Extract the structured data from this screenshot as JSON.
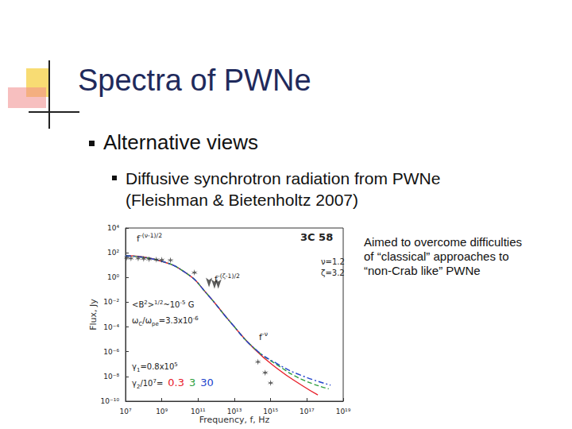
{
  "title": "Spectra of PWNe",
  "bullet": "Alternative views",
  "sub_bullet": [
    "Diffusive synchrotron radiation from PWNe",
    "(Fleishman & Bietenholtz 2007)"
  ],
  "note": "Aimed to overcome difficulties of “classical” approaches to “non-Crab like” PWNe",
  "chart_data": {
    "type": "line",
    "log": true,
    "grid": false,
    "xlabel": "Frequency, f, Hz",
    "ylabel": "Flux, Jy",
    "xlim": [
      10000000.0,
      1e+19
    ],
    "xticks": [
      {
        "value": 10000000.0,
        "label": "10⁷"
      },
      {
        "value": 1000000000.0,
        "label": "10⁹"
      },
      {
        "value": 100000000000.0,
        "label": "10¹¹"
      },
      {
        "value": 10000000000000.0,
        "label": "10¹³"
      },
      {
        "value": 1000000000000000.0,
        "label": "10¹⁵"
      },
      {
        "value": 1e+17,
        "label": "10¹⁷"
      },
      {
        "value": 1e+19,
        "label": "10¹⁹"
      }
    ],
    "ylim": [
      1e-10,
      10000.0
    ],
    "yticks": [
      {
        "value": 1e-10,
        "label": "10⁻¹⁰"
      },
      {
        "value": 1e-08,
        "label": "10⁻⁸"
      },
      {
        "value": 1e-06,
        "label": "10⁻⁶"
      },
      {
        "value": 0.0001,
        "label": "10⁻⁴"
      },
      {
        "value": 0.01,
        "label": "10⁻²"
      },
      {
        "value": 1,
        "label": "10⁰"
      },
      {
        "value": 100,
        "label": "10²"
      },
      {
        "value": 10000,
        "label": "10⁴"
      }
    ],
    "annotations": [
      [
        {
          "text": "3C 58"
        }
      ],
      [
        {
          "text": "ν=1.2"
        }
      ],
      [
        {
          "text": "ζ=3.2"
        }
      ],
      [
        {
          "text": "f"
        },
        {
          "sup": "-(ν-1)/2"
        }
      ],
      [
        {
          "text": "f"
        },
        {
          "sup": "-(ζ-1)/2"
        }
      ],
      [
        {
          "text": "<B"
        },
        {
          "sup": "2"
        },
        {
          "text": ">"
        },
        {
          "sup": "1/2"
        },
        {
          "text": "~10"
        },
        {
          "sup": "-5"
        },
        {
          "text": " G"
        }
      ],
      [
        {
          "text": "ω"
        },
        {
          "sub": "C"
        },
        {
          "text": "/ω"
        },
        {
          "sub": "pe"
        },
        {
          "text": "=3.3x10"
        },
        {
          "sup": "-6"
        }
      ],
      [
        {
          "text": "f"
        },
        {
          "sup": "-ν"
        }
      ],
      [
        {
          "text": "γ"
        },
        {
          "sub": "1"
        },
        {
          "text": "=0.8x10"
        },
        {
          "sup": "5"
        }
      ],
      [
        {
          "text": "γ"
        },
        {
          "sub": "2"
        },
        {
          "text": "/10"
        },
        {
          "sup": "7"
        },
        {
          "text": "="
        }
      ]
    ],
    "series": [
      {
        "type": "scatter",
        "marker": "star",
        "color": "#333333",
        "x": [
          12000000.0,
          20000000.0,
          50000000.0,
          100000000.0,
          200000000.0,
          500000000.0,
          1000000000.0,
          3000000000.0,
          63000000000.0,
          200000000000000.0,
          500000000000000.0,
          1000000000000000.0
        ],
        "values": [
          40,
          35,
          35,
          33,
          30,
          28,
          27,
          25,
          2.5,
          1.5e-07,
          2e-08,
          3e-09
        ]
      },
      {
        "type": "scatter",
        "marker": "arrow",
        "color": "#333333",
        "x": [
          400000000000.0,
          800000000000.0,
          1300000000000.0
        ],
        "values": [
          0.4,
          0.3,
          0.3
        ]
      },
      {
        "name": "0.3",
        "color": "#e8202a",
        "line_style": "solid",
        "x": [
          10000000.0,
          600000000.0,
          25000000000.0,
          300000000000.0,
          6000000000000.0,
          130000000000000.0,
          2500000000000000.0,
          5e+16,
          4e+17
        ],
        "values": [
          56,
          25,
          2,
          0.05,
          0.00025,
          1.6e-06,
          4e-08,
          2e-09,
          3.2e-10
        ]
      },
      {
        "name": "3",
        "color": "#2e9e3e",
        "line_style": "dashed",
        "x": [
          10000000.0,
          600000000.0,
          25000000000.0,
          300000000000.0,
          6000000000000.0,
          130000000000000.0,
          2500000000000000.0,
          5e+16,
          1.6e+18
        ],
        "values": [
          56,
          25,
          2,
          0.05,
          0.00025,
          1.8e-06,
          8e-08,
          6e-09,
          1e-09
        ]
      },
      {
        "name": "30",
        "color": "#2244cc",
        "line_style": "dashdot",
        "x": [
          10000000.0,
          600000000.0,
          25000000000.0,
          300000000000.0,
          6000000000000.0,
          130000000000000.0,
          2500000000000000.0,
          5e+16,
          2e+18
        ],
        "values": [
          56,
          25,
          2,
          0.05,
          0.00025,
          1.8e-06,
          1e-07,
          1.2e-08,
          2e-09
        ]
      }
    ]
  }
}
